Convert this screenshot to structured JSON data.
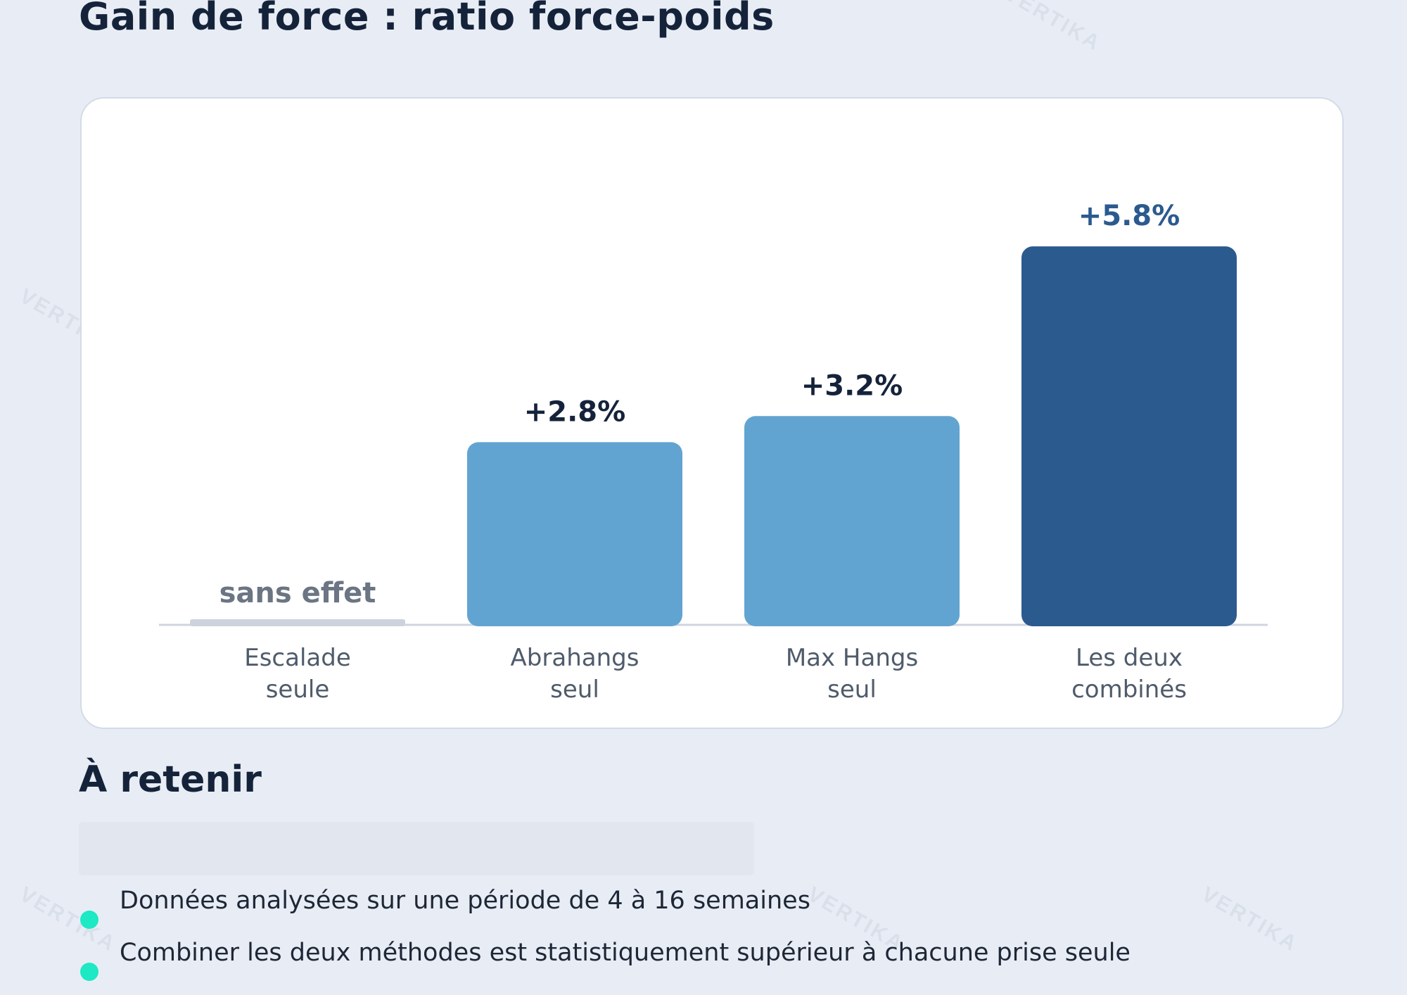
{
  "page_title": "Gain de force : ratio force-poids",
  "watermark_text": "VERTIKA",
  "colors": {
    "background": "#e8edf5",
    "bar_light": "#62a4d1",
    "bar_dark": "#2b5a8f",
    "bar_none": "#cdd3dc",
    "bullet_accent": "#1de9c4"
  },
  "chart_data": {
    "type": "bar",
    "title": "",
    "xlabel": "",
    "ylabel": "",
    "ylim": [
      0,
      6.6
    ],
    "grid": false,
    "categories": [
      [
        "Escalade",
        "seule"
      ],
      [
        "Abrahangs",
        "seul"
      ],
      [
        "Max Hangs",
        "seul"
      ],
      [
        "Les deux",
        "combinés"
      ]
    ],
    "values": [
      0,
      2.8,
      3.2,
      5.8
    ],
    "data_labels": [
      "sans effet",
      "+2.8%",
      "+3.2%",
      "+5.8%"
    ],
    "bar_colors": [
      "#cdd3dc",
      "#62a4d1",
      "#62a4d1",
      "#2b5a8f"
    ],
    "label_colors": [
      "#6b7583",
      "#15233a",
      "#15233a",
      "#2b5a8f"
    ]
  },
  "takeaways": {
    "title": "À retenir",
    "items": [
      "Données analysées sur une période de 4 à 16 semaines",
      "Combiner les deux méthodes est statistiquement supérieur à chacune prise seule"
    ]
  }
}
